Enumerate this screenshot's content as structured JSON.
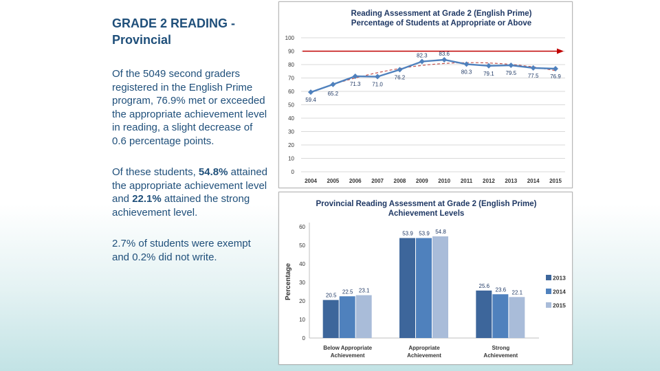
{
  "text": {
    "title_line1": "GRADE 2 READING -",
    "title_line2": "Provincial",
    "para1": "Of the 5049 second graders registered in the English Prime program, 76.9% met or exceeded the appropriate achievement level in reading, a slight decrease of 0.6 percentage points.",
    "para2_pre": "Of these students, ",
    "para2_b1": "54.8%",
    "para2_mid": " attained the appropriate achievement level and ",
    "para2_b2": "22.1%",
    "para2_post": " attained the strong achievement level.",
    "para3": "2.7% of students were exempt and 0.2% did not write."
  },
  "colors": {
    "text_blue": "#1f4f7a",
    "line_series": "#4f81bd",
    "trend_line": "#c0504d",
    "target_arrow": "#c00000",
    "bar_2013": "#3d669b",
    "bar_2014": "#4f81bd",
    "bar_2015": "#a9bcd9"
  },
  "chart_data": [
    {
      "type": "line",
      "title": "Reading Assessment at Grade 2 (English Prime)",
      "subtitle": "Percentage of Students at Appropriate or Above",
      "x": [
        "2004",
        "2005",
        "2006",
        "2007",
        "2008",
        "2009",
        "2010",
        "2011",
        "2012",
        "2013",
        "2014",
        "2015"
      ],
      "series": [
        {
          "values": [
            59.4,
            65.2,
            71.3,
            71.0,
            76.2,
            82.3,
            83.6,
            80.3,
            79.1,
            79.5,
            77.5,
            76.9
          ]
        }
      ],
      "data_labels": [
        "59.4",
        "65.2",
        "71.3",
        "71.0",
        "76.2",
        "82.3",
        "83.6",
        "80.3",
        "79.1",
        "79.5",
        "77.5",
        "76.9"
      ],
      "trend_line": true,
      "target_value": 90,
      "y_ticks": [
        "0",
        "10",
        "20",
        "30",
        "40",
        "50",
        "60",
        "70",
        "80",
        "90",
        "100"
      ],
      "ylim": [
        0,
        100
      ],
      "grid": true
    },
    {
      "type": "bar",
      "title": "Provincial Reading Assessment at Grade 2 (English Prime)",
      "subtitle": "Achievement Levels",
      "categories": [
        "Below Appropriate Achievement",
        "Appropriate Achievement",
        "Strong Achievement"
      ],
      "series": [
        {
          "name": "2013",
          "values": [
            20.5,
            53.9,
            25.6
          ]
        },
        {
          "name": "2014",
          "values": [
            22.5,
            53.9,
            23.6
          ]
        },
        {
          "name": "2015",
          "values": [
            23.1,
            54.8,
            22.1
          ]
        }
      ],
      "ylabel": "Percentage",
      "y_ticks": [
        "0",
        "10",
        "20",
        "30",
        "40",
        "50",
        "60"
      ],
      "ylim": [
        0,
        60
      ],
      "legend": "right",
      "grid": false
    }
  ]
}
